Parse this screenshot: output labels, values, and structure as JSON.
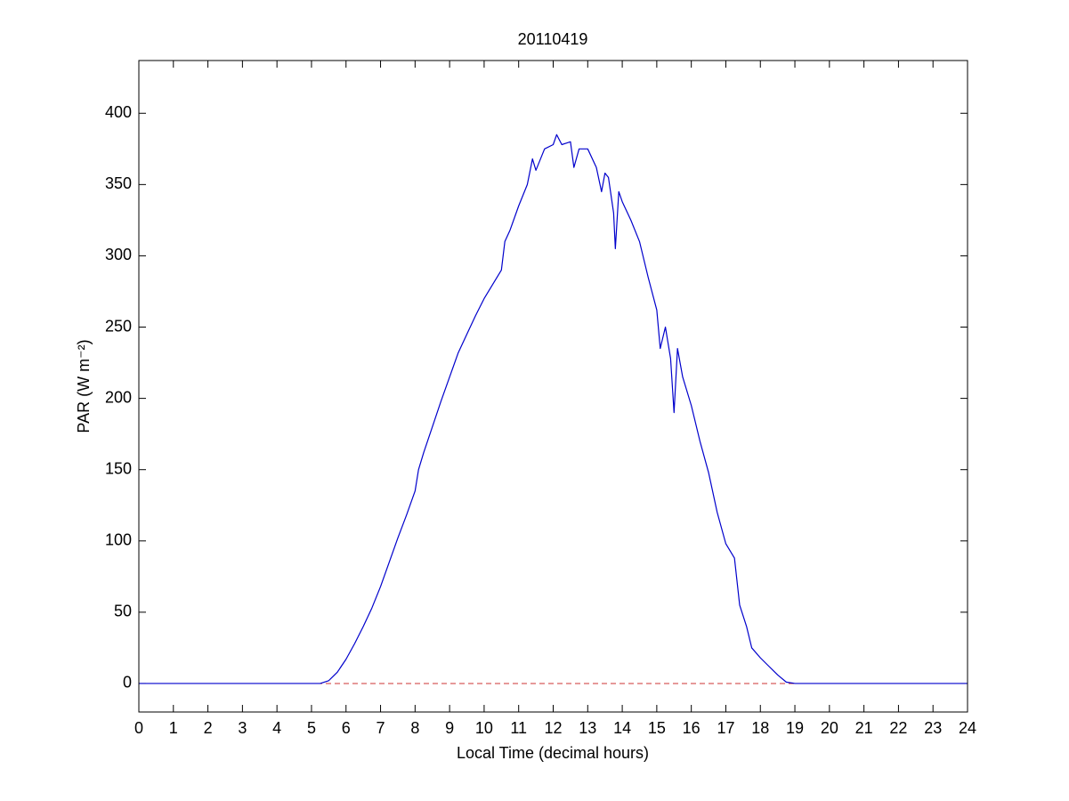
{
  "chart_data": {
    "type": "line",
    "title": "20110419",
    "xlabel": "Local Time (decimal hours)",
    "ylabel": "PAR (W m⁻²)",
    "x": [
      0,
      1,
      2,
      3,
      4,
      5,
      5.25,
      5.5,
      5.75,
      6,
      6.25,
      6.5,
      6.75,
      7,
      7.25,
      7.5,
      7.75,
      8,
      8.1,
      8.25,
      8.5,
      8.75,
      9,
      9.25,
      9.5,
      9.75,
      10,
      10.25,
      10.5,
      10.6,
      10.75,
      11,
      11.25,
      11.4,
      11.5,
      11.75,
      12,
      12.1,
      12.25,
      12.5,
      12.6,
      12.75,
      13,
      13.25,
      13.4,
      13.5,
      13.6,
      13.75,
      13.8,
      13.9,
      14,
      14.25,
      14.5,
      14.75,
      15,
      15.1,
      15.25,
      15.4,
      15.5,
      15.6,
      15.75,
      16,
      16.25,
      16.5,
      16.75,
      17,
      17.25,
      17.4,
      17.6,
      17.75,
      18,
      18.25,
      18.5,
      18.75,
      19,
      20,
      24
    ],
    "series": [
      {
        "color": "#0000cc",
        "values": [
          0,
          0,
          0,
          0,
          0,
          0,
          0,
          2,
          8,
          17,
          28,
          40,
          53,
          68,
          85,
          102,
          118,
          135,
          150,
          162,
          180,
          198,
          215,
          232,
          245,
          258,
          270,
          280,
          290,
          310,
          318,
          335,
          350,
          368,
          360,
          375,
          378,
          385,
          378,
          380,
          362,
          375,
          375,
          362,
          345,
          358,
          355,
          330,
          305,
          345,
          338,
          325,
          310,
          285,
          262,
          235,
          250,
          228,
          190,
          235,
          215,
          195,
          170,
          148,
          120,
          98,
          88,
          55,
          40,
          25,
          18,
          12,
          6,
          1,
          0,
          0,
          0
        ]
      }
    ],
    "reference_line": {
      "value": 0,
      "color": "#cc3333",
      "style": "dashed"
    },
    "xlim": [
      0,
      24
    ],
    "xticks": [
      0,
      1,
      2,
      3,
      4,
      5,
      6,
      7,
      8,
      9,
      10,
      11,
      12,
      13,
      14,
      15,
      16,
      17,
      18,
      19,
      20,
      21,
      22,
      23,
      24
    ],
    "ylim": [
      -20,
      437
    ],
    "yticks": [
      0,
      50,
      100,
      150,
      200,
      250,
      300,
      350,
      400
    ],
    "grid": false
  }
}
